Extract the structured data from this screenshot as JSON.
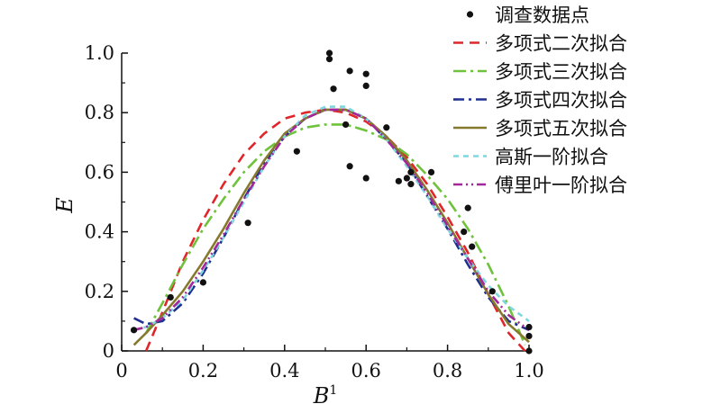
{
  "chart_data": {
    "type": "scatter",
    "title": "",
    "xlabel": "B",
    "xlabel_superscript": "1",
    "ylabel": "E",
    "xlim": [
      0,
      1.0
    ],
    "ylim": [
      0,
      1.0
    ],
    "x_ticks": [
      "0",
      "0.2",
      "0.4",
      "0.6",
      "0.8",
      "1.0"
    ],
    "y_ticks": [
      "0",
      "0.2",
      "0.4",
      "0.6",
      "0.8",
      "1.0"
    ],
    "x_tick_values": [
      0,
      0.2,
      0.4,
      0.6,
      0.8,
      1.0
    ],
    "y_tick_values": [
      0,
      0.2,
      0.4,
      0.6,
      0.8,
      1.0
    ],
    "grid": false,
    "legend_position": "top-right",
    "scatter": {
      "name": "调查数据点",
      "color": "#111111",
      "points": [
        [
          0.03,
          0.07
        ],
        [
          0.12,
          0.18
        ],
        [
          0.2,
          0.23
        ],
        [
          0.31,
          0.43
        ],
        [
          0.43,
          0.67
        ],
        [
          0.51,
          1.0
        ],
        [
          0.51,
          0.98
        ],
        [
          0.52,
          0.88
        ],
        [
          0.55,
          0.76
        ],
        [
          0.56,
          0.94
        ],
        [
          0.56,
          0.62
        ],
        [
          0.6,
          0.93
        ],
        [
          0.6,
          0.89
        ],
        [
          0.6,
          0.58
        ],
        [
          0.65,
          0.75
        ],
        [
          0.68,
          0.57
        ],
        [
          0.7,
          0.58
        ],
        [
          0.71,
          0.6
        ],
        [
          0.71,
          0.56
        ],
        [
          0.76,
          0.6
        ],
        [
          0.84,
          0.4
        ],
        [
          0.85,
          0.48
        ],
        [
          0.86,
          0.35
        ],
        [
          0.91,
          0.2
        ],
        [
          1.0,
          0.08
        ],
        [
          1.0,
          0.05
        ],
        [
          1.0,
          0.0
        ]
      ]
    },
    "series": [
      {
        "name": "多项式二次拟合",
        "color": "#e0262a",
        "dash": "11,7",
        "x": [
          0.06,
          0.1,
          0.15,
          0.2,
          0.25,
          0.3,
          0.35,
          0.4,
          0.45,
          0.5,
          0.55,
          0.6,
          0.65,
          0.7,
          0.75,
          0.8,
          0.85,
          0.9,
          0.95,
          0.99
        ],
        "y": [
          0.0,
          0.13,
          0.3,
          0.44,
          0.56,
          0.66,
          0.73,
          0.78,
          0.8,
          0.81,
          0.8,
          0.77,
          0.72,
          0.65,
          0.56,
          0.45,
          0.33,
          0.19,
          0.06,
          0.0
        ]
      },
      {
        "name": "多项式三次拟合",
        "color": "#6fc23b",
        "dash": "14,5,3,5",
        "x": [
          0.06,
          0.1,
          0.15,
          0.2,
          0.25,
          0.3,
          0.35,
          0.4,
          0.45,
          0.5,
          0.55,
          0.6,
          0.65,
          0.7,
          0.75,
          0.8,
          0.85,
          0.9,
          0.95,
          0.99
        ],
        "y": [
          0.06,
          0.16,
          0.29,
          0.41,
          0.51,
          0.6,
          0.67,
          0.72,
          0.75,
          0.76,
          0.76,
          0.74,
          0.71,
          0.66,
          0.59,
          0.51,
          0.41,
          0.29,
          0.15,
          0.02
        ]
      },
      {
        "name": "多项式四次拟合",
        "color": "#1f2f8f",
        "dash": "12,5,3,5",
        "x": [
          0.03,
          0.06,
          0.1,
          0.15,
          0.2,
          0.25,
          0.3,
          0.35,
          0.4,
          0.45,
          0.5,
          0.55,
          0.6,
          0.65,
          0.7,
          0.75,
          0.8,
          0.85,
          0.9,
          0.95,
          1.0
        ],
        "y": [
          0.11,
          0.09,
          0.1,
          0.16,
          0.26,
          0.38,
          0.51,
          0.63,
          0.72,
          0.78,
          0.81,
          0.81,
          0.78,
          0.71,
          0.63,
          0.52,
          0.41,
          0.29,
          0.18,
          0.1,
          0.07
        ]
      },
      {
        "name": "多项式五次拟合",
        "color": "#857a2c",
        "dash": "",
        "x": [
          0.03,
          0.06,
          0.1,
          0.15,
          0.2,
          0.25,
          0.3,
          0.35,
          0.4,
          0.45,
          0.5,
          0.55,
          0.6,
          0.65,
          0.7,
          0.75,
          0.8,
          0.85,
          0.9,
          0.95,
          1.0
        ],
        "y": [
          0.02,
          0.06,
          0.12,
          0.2,
          0.3,
          0.41,
          0.53,
          0.64,
          0.73,
          0.78,
          0.81,
          0.81,
          0.78,
          0.72,
          0.64,
          0.54,
          0.43,
          0.31,
          0.19,
          0.09,
          0.03
        ]
      },
      {
        "name": "高斯一阶拟合",
        "color": "#7fd7dd",
        "dash": "6,5",
        "x": [
          0.03,
          0.06,
          0.1,
          0.15,
          0.2,
          0.25,
          0.3,
          0.35,
          0.4,
          0.45,
          0.5,
          0.55,
          0.6,
          0.65,
          0.7,
          0.75,
          0.8,
          0.85,
          0.9,
          0.95,
          1.0
        ],
        "y": [
          0.07,
          0.08,
          0.11,
          0.17,
          0.27,
          0.38,
          0.5,
          0.62,
          0.72,
          0.79,
          0.82,
          0.82,
          0.78,
          0.71,
          0.62,
          0.52,
          0.41,
          0.31,
          0.22,
          0.15,
          0.1
        ]
      },
      {
        "name": "傅里叶一阶拟合",
        "color": "#a2289a",
        "dash": "10,4,2,4,2,4",
        "x": [
          0.03,
          0.06,
          0.1,
          0.15,
          0.2,
          0.25,
          0.3,
          0.35,
          0.4,
          0.45,
          0.5,
          0.55,
          0.6,
          0.65,
          0.7,
          0.75,
          0.8,
          0.85,
          0.9,
          0.95,
          1.0
        ],
        "y": [
          0.07,
          0.08,
          0.11,
          0.18,
          0.28,
          0.39,
          0.51,
          0.62,
          0.72,
          0.78,
          0.81,
          0.81,
          0.78,
          0.71,
          0.63,
          0.53,
          0.42,
          0.31,
          0.2,
          0.12,
          0.07
        ]
      }
    ]
  }
}
